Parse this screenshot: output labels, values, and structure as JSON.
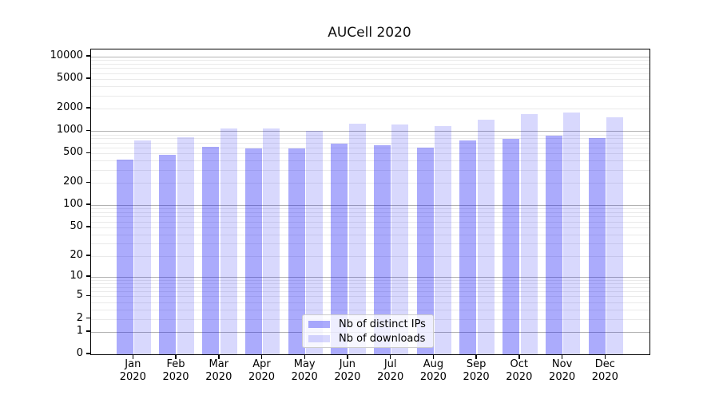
{
  "chart_data": {
    "type": "bar",
    "title": "AUCell 2020",
    "scale": "log1p",
    "grid": "both",
    "year": "2020",
    "categories": [
      "Jan",
      "Feb",
      "Mar",
      "Apr",
      "May",
      "Jun",
      "Jul",
      "Aug",
      "Sep",
      "Oct",
      "Nov",
      "Dec"
    ],
    "series": [
      {
        "name": "Nb of distinct IPs",
        "values": [
          410,
          480,
          610,
          585,
          590,
          670,
          650,
          600,
          740,
          785,
          865,
          815
        ]
      },
      {
        "name": "Nb of downloads",
        "values": [
          750,
          830,
          1080,
          1080,
          1000,
          1260,
          1220,
          1160,
          1430,
          1680,
          1780,
          1550
        ]
      }
    ],
    "yticks": [
      10000,
      5000,
      2000,
      1000,
      500,
      200,
      100,
      50,
      20,
      10,
      5,
      2,
      1,
      0
    ],
    "major_grid_values": [
      1,
      10,
      100,
      1000,
      10000
    ],
    "ylim": [
      0,
      12500
    ],
    "legend_position": "lower-center"
  },
  "legend": {
    "items": [
      {
        "label": "Nb of distinct IPs",
        "color": "rgba(15, 15, 245, 0.35)"
      },
      {
        "label": "Nb of downloads",
        "color": "rgba(15, 15, 245, 0.16)"
      }
    ]
  },
  "colors": {
    "bar_distinct_ips": "rgba(15, 15, 245, 0.35)",
    "bar_downloads": "rgba(15, 15, 245, 0.16)",
    "grid_major": "#b2b2b2",
    "grid_minor": "#eaeaea",
    "spine": "#000000"
  }
}
